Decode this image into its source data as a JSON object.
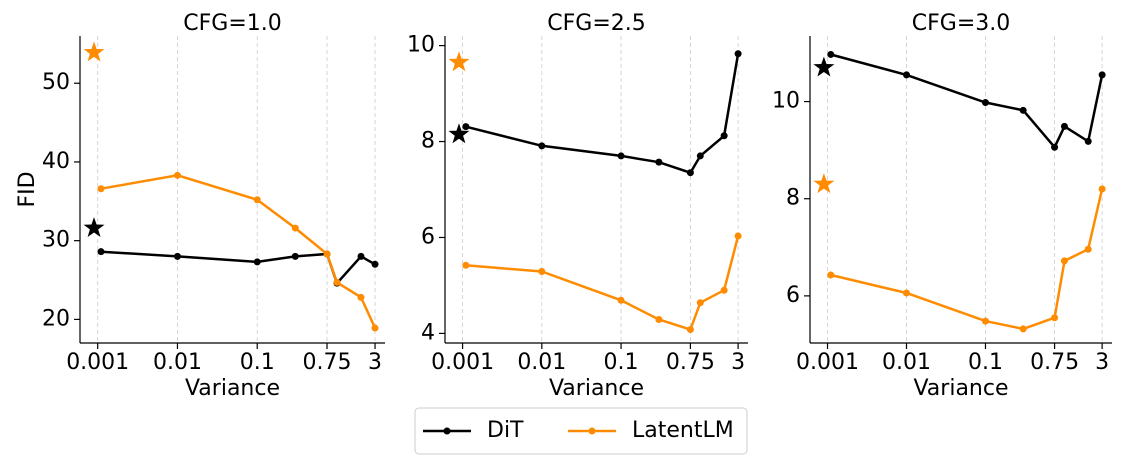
{
  "chart_data": [
    {
      "type": "line",
      "title": "CFG=1.0",
      "xlabel": "Variance",
      "ylabel": "FID",
      "xlog": true,
      "grid": "x",
      "x": [
        0.0011,
        0.01,
        0.1,
        0.3,
        0.75,
        1,
        2,
        3
      ],
      "series": [
        {
          "name": "DiT",
          "color": "#000000",
          "values": [
            28.6,
            28.0,
            27.3,
            28.0,
            28.3,
            24.6,
            28.0,
            27.0
          ]
        },
        {
          "name": "LatentLM",
          "color": "#ff8c00",
          "values": [
            36.6,
            38.3,
            35.2,
            31.6,
            28.3,
            24.7,
            22.8,
            18.9
          ]
        }
      ],
      "markers": [
        {
          "x": 0.0009,
          "y": 31.6,
          "color": "#000000"
        },
        {
          "x": 0.0009,
          "y": 53.9,
          "color": "#ff8c00"
        }
      ],
      "xlim": [
        0.0006,
        4
      ],
      "ylim": [
        17,
        56
      ],
      "xticks": [
        0.001,
        0.01,
        0.1,
        0.75,
        3
      ],
      "yticks": [
        20,
        30,
        40,
        50
      ]
    },
    {
      "type": "line",
      "title": "CFG=2.5",
      "xlabel": "Variance",
      "xlog": true,
      "grid": "x",
      "x": [
        0.0011,
        0.01,
        0.1,
        0.3,
        0.75,
        1,
        2,
        3
      ],
      "series": [
        {
          "name": "DiT",
          "color": "#000000",
          "values": [
            8.31,
            7.91,
            7.7,
            7.57,
            7.35,
            7.7,
            8.12,
            9.83
          ]
        },
        {
          "name": "LatentLM",
          "color": "#ff8c00",
          "values": [
            5.42,
            5.29,
            4.69,
            4.29,
            4.08,
            4.64,
            4.9,
            6.03
          ]
        }
      ],
      "markers": [
        {
          "x": 0.0009,
          "y": 8.15,
          "color": "#000000"
        },
        {
          "x": 0.0009,
          "y": 9.65,
          "color": "#ff8c00"
        }
      ],
      "xlim": [
        0.0006,
        4
      ],
      "ylim": [
        3.8,
        10.2
      ],
      "xticks": [
        0.001,
        0.01,
        0.1,
        0.75,
        3
      ],
      "yticks": [
        4,
        6,
        8,
        10
      ]
    },
    {
      "type": "line",
      "title": "CFG=3.0",
      "xlabel": "Variance",
      "xlog": true,
      "grid": "x",
      "x": [
        0.0011,
        0.01,
        0.1,
        0.3,
        0.75,
        1,
        2,
        3
      ],
      "series": [
        {
          "name": "DiT",
          "color": "#000000",
          "values": [
            10.97,
            10.55,
            9.98,
            9.82,
            9.06,
            9.49,
            9.18,
            10.55
          ]
        },
        {
          "name": "LatentLM",
          "color": "#ff8c00",
          "values": [
            6.43,
            6.06,
            5.48,
            5.32,
            5.55,
            6.72,
            6.96,
            8.2
          ]
        }
      ],
      "markers": [
        {
          "x": 0.0009,
          "y": 10.7,
          "color": "#000000"
        },
        {
          "x": 0.0009,
          "y": 8.3,
          "color": "#ff8c00"
        }
      ],
      "xlim": [
        0.0006,
        4
      ],
      "ylim": [
        5.03,
        11.35
      ],
      "xticks": [
        0.001,
        0.01,
        0.1,
        0.75,
        3
      ],
      "yticks": [
        6,
        8,
        10
      ]
    }
  ]
}
